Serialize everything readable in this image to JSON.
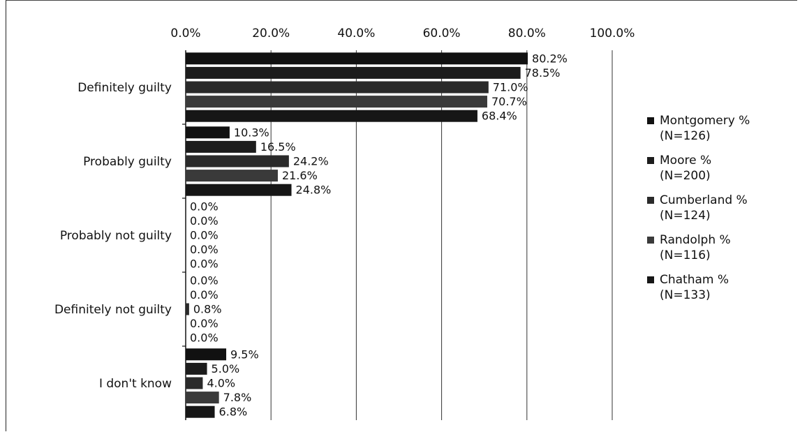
{
  "chart_data": {
    "type": "bar",
    "orientation": "horizontal",
    "categories": [
      "Definitely guilty",
      "Probably guilty",
      "Probably not guilty",
      "Definitely not guilty",
      "I don't know"
    ],
    "series": [
      {
        "name": "Montgomery %",
        "n_label": "(N=126)",
        "values": [
          80.2,
          10.3,
          0.0,
          0.0,
          9.5
        ],
        "labels": [
          "80.2%",
          "10.3%",
          "0.0%",
          "0.0%",
          "9.5%"
        ]
      },
      {
        "name": "Moore %",
        "n_label": "(N=200)",
        "values": [
          78.5,
          16.5,
          0.0,
          0.0,
          5.0
        ],
        "labels": [
          "78.5%",
          "16.5%",
          "0.0%",
          "0.0%",
          "5.0%"
        ]
      },
      {
        "name": "Cumberland %",
        "n_label": "(N=124)",
        "values": [
          71.0,
          24.2,
          0.0,
          0.8,
          4.0
        ],
        "labels": [
          "71.0%",
          "24.2%",
          "0.0%",
          "0.8%",
          "4.0%"
        ]
      },
      {
        "name": "Randolph %",
        "n_label": "(N=116)",
        "values": [
          70.7,
          21.6,
          0.0,
          0.0,
          7.8
        ],
        "labels": [
          "70.7%",
          "21.6%",
          "0.0%",
          "0.0%",
          "7.8%"
        ]
      },
      {
        "name": "Chatham %",
        "n_label": "(N=133)",
        "values": [
          68.4,
          24.8,
          0.0,
          0.0,
          6.8
        ],
        "labels": [
          "68.4%",
          "24.8%",
          "0.0%",
          "0.0%",
          "6.8%"
        ]
      }
    ],
    "x_ticks": [
      "0.0%",
      "20.0%",
      "40.0%",
      "60.0%",
      "80.0%",
      "100.0%"
    ],
    "xlim": [
      0,
      100
    ],
    "grid": true,
    "legend_position": "right",
    "colors": [
      "#111111",
      "#1c1c1c",
      "#2a2a2a",
      "#3a3a3a",
      "#161616"
    ]
  }
}
